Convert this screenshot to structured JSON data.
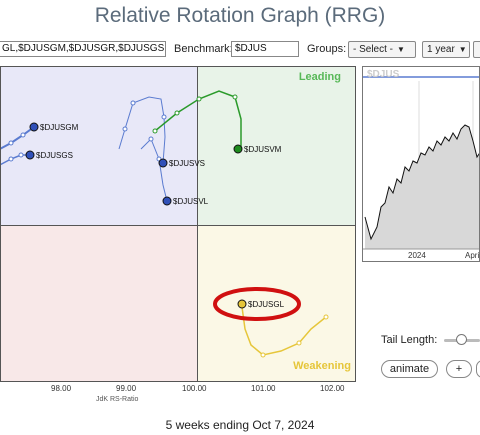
{
  "page": {
    "title": "Relative Rotation Graph (RRG)",
    "footer": "5 weeks ending Oct 7, 2024"
  },
  "toolbar": {
    "symbols_value": "GL,$DJUSGM,$DJUSGR,$DJUSGS",
    "benchmark_label": "Benchmark:",
    "benchmark_value": "$DJUS",
    "groups_label": "Groups:",
    "groups_select": "- Select -",
    "period_select": "1 year"
  },
  "quadrants": {
    "leading": "Leading",
    "weakening": "Weakening"
  },
  "colors": {
    "leading": "#e8f3e8",
    "improving": "#e8e8f8",
    "lagging": "#f8e8e8",
    "weakening": "#fbf8e6",
    "leading_text": "#57b857",
    "weakening_text": "#e6c63a",
    "highlight": "#d01010"
  },
  "x_axis": {
    "title": "JdK RS-Ratio",
    "ticks": [
      "98.00",
      "99.00",
      "100.00",
      "101.00",
      "102.00"
    ]
  },
  "securities": [
    {
      "symbol": "$DJUSGM",
      "color": "#5a7bd0"
    },
    {
      "symbol": "$DJUSGS",
      "color": "#5a7bd0"
    },
    {
      "symbol": "$DJUSVS",
      "color": "#5a7bd0"
    },
    {
      "symbol": "$DJUSVL",
      "color": "#5a7bd0"
    },
    {
      "symbol": "$DJUSVM",
      "color": "#2a9a2a"
    },
    {
      "symbol": "$DJUSGL",
      "color": "#e6c63a"
    }
  ],
  "mini_chart": {
    "title": "$DJUS",
    "x_labels": [
      "2024",
      "April"
    ]
  },
  "controls": {
    "tail_length_label": "Tail Length:",
    "animate_label": "animate",
    "plus_label": "+"
  }
}
